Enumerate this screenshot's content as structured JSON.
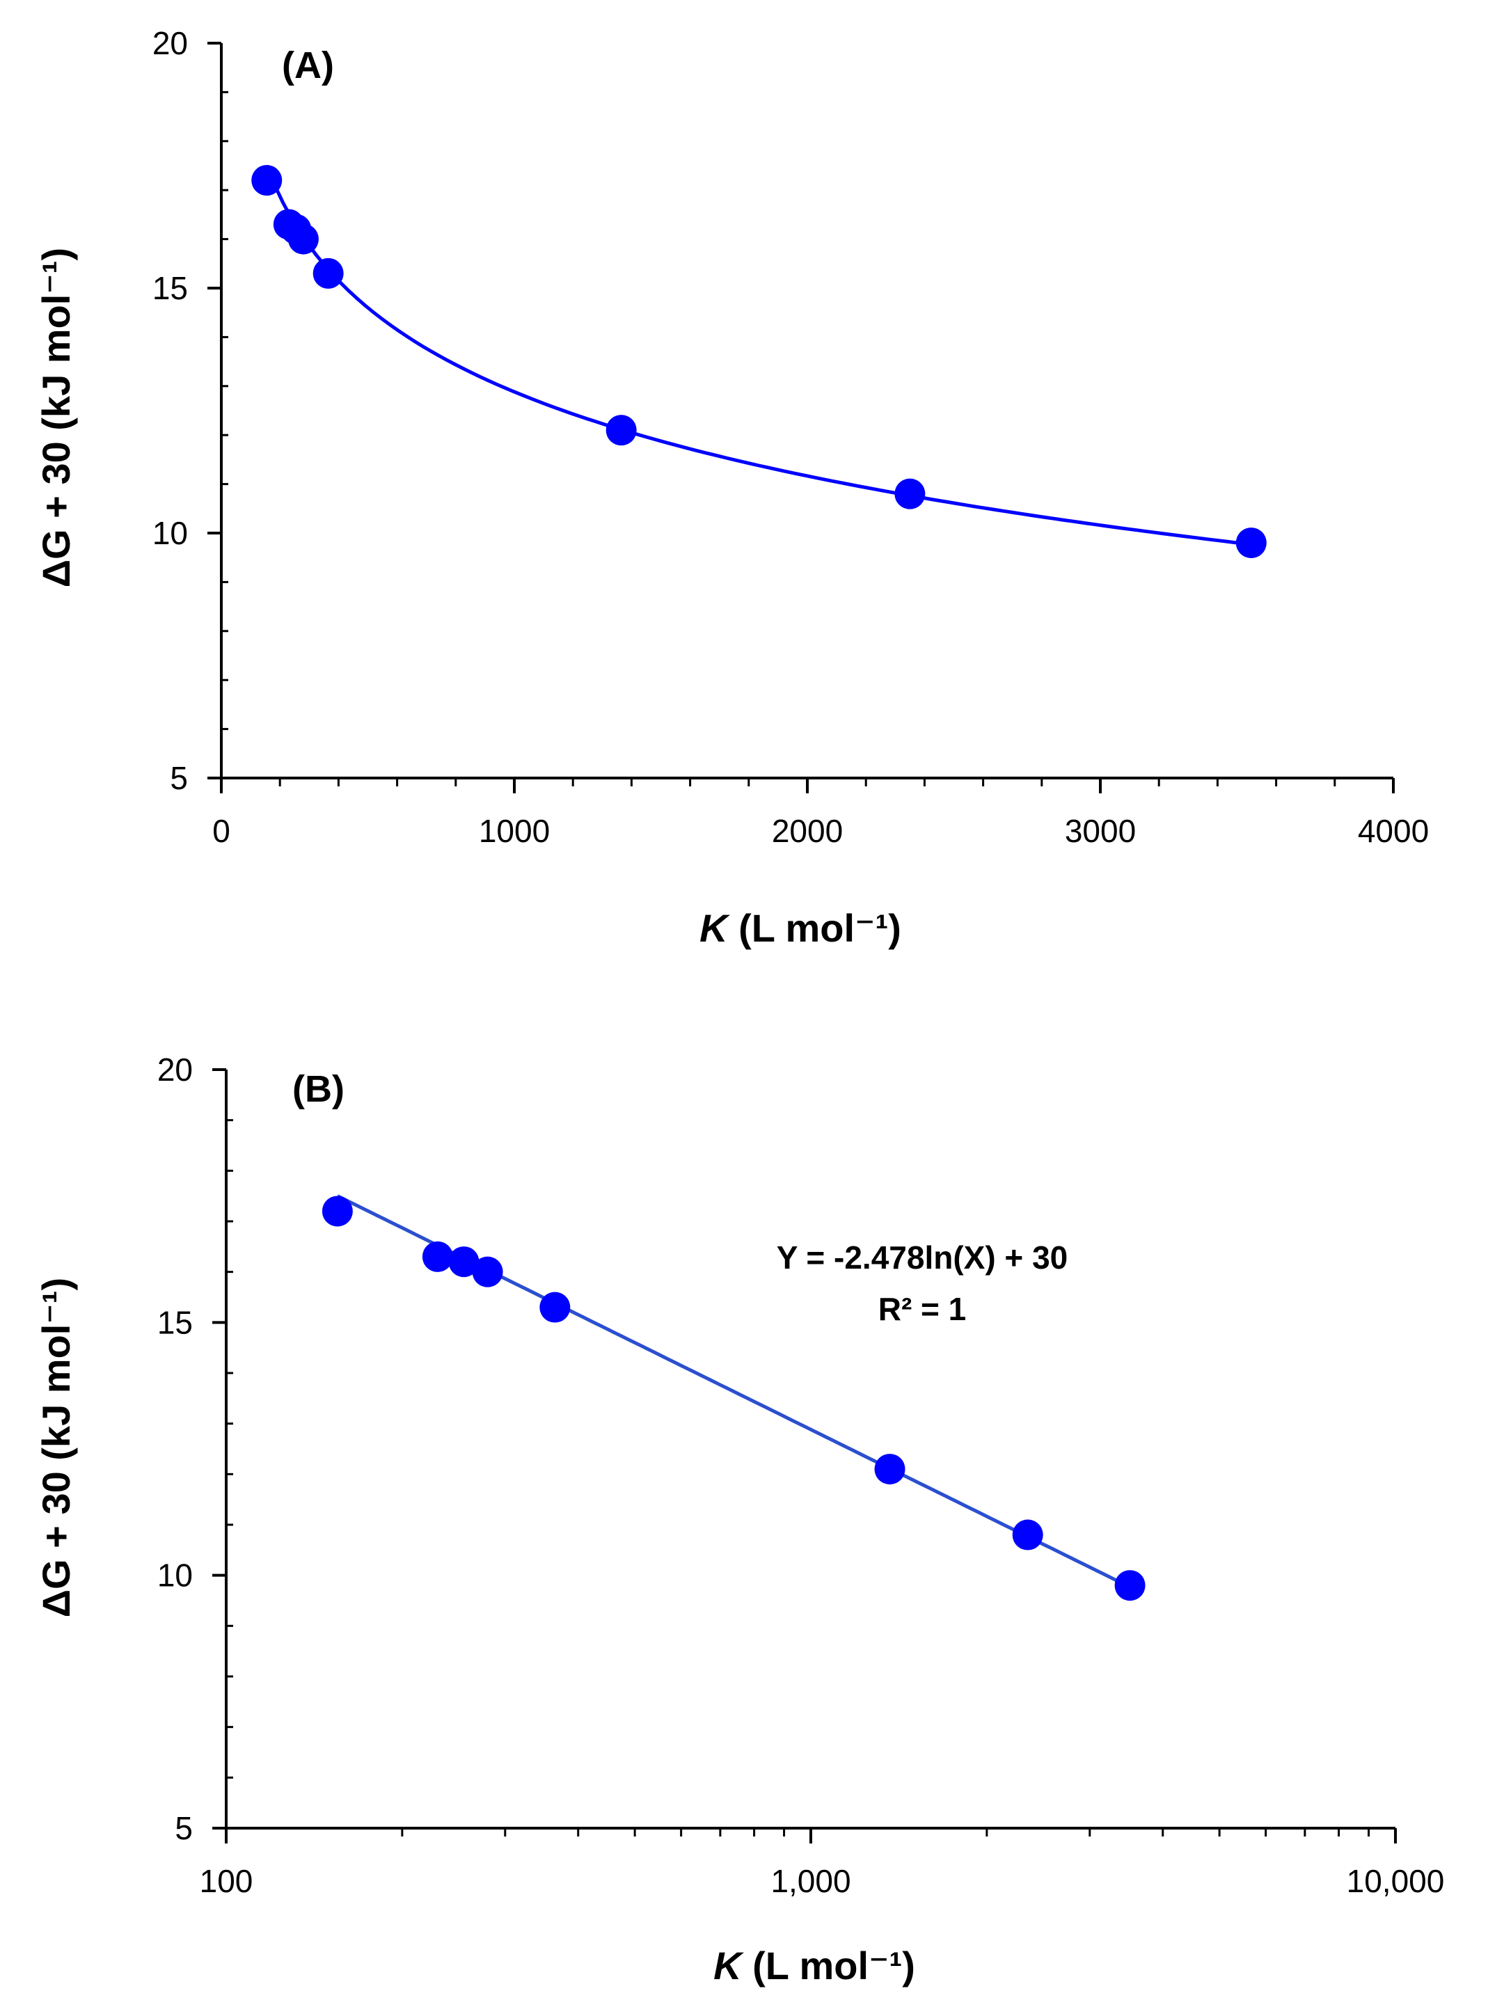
{
  "chart_data": [
    {
      "type": "scatter",
      "panel_label": "(A)",
      "xscale": "linear",
      "xlabel": {
        "italic": "K",
        "rest": " (L mol⁻¹)"
      },
      "ylabel": "ΔG + 30 (kJ mol⁻¹)",
      "xlim": [
        0,
        4000
      ],
      "ylim": [
        5,
        20
      ],
      "xticks": [
        0,
        1000,
        2000,
        3000,
        4000
      ],
      "xtick_labels": [
        "0",
        "1000",
        "2000",
        "3000",
        "4000"
      ],
      "yticks": [
        5,
        10,
        15,
        20
      ],
      "ytick_labels": [
        "5",
        "10",
        "15",
        "20"
      ],
      "y_minor_step": 1,
      "x_minor_step": 200,
      "marker_color": "#0000ff",
      "curve_color": "#0000ff",
      "series": [
        {
          "name": "data",
          "x": [
            155,
            230,
            255,
            280,
            365,
            1365,
            2350,
            3515
          ],
          "y": [
            17.2,
            16.3,
            16.2,
            16.0,
            15.3,
            12.1,
            10.8,
            9.8
          ]
        }
      ],
      "fit": {
        "type": "ln",
        "a": -2.478,
        "b": 30,
        "x_from": 155,
        "x_to": 3515
      }
    },
    {
      "type": "scatter",
      "panel_label": "(B)",
      "xscale": "log",
      "xlabel": {
        "italic": "K",
        "rest": " (L mol⁻¹)"
      },
      "ylabel": "ΔG + 30 (kJ mol⁻¹)",
      "xlim": [
        100,
        10000
      ],
      "ylim": [
        5,
        20
      ],
      "xticks": [
        100,
        1000,
        10000
      ],
      "xtick_labels": [
        "100",
        "1,000",
        "10,000"
      ],
      "yticks": [
        5,
        10,
        15,
        20
      ],
      "ytick_labels": [
        "5",
        "10",
        "15",
        "20"
      ],
      "y_minor_step": 1,
      "marker_color": "#0000ff",
      "curve_color": "#2b4fcf",
      "series": [
        {
          "name": "data",
          "x": [
            155,
            230,
            255,
            280,
            365,
            1365,
            2350,
            3515
          ],
          "y": [
            17.2,
            16.3,
            16.2,
            16.0,
            15.3,
            12.1,
            10.8,
            9.8
          ]
        }
      ],
      "fit": {
        "type": "ln",
        "a": -2.478,
        "b": 30,
        "x_from": 155,
        "x_to": 3515
      },
      "annotation": {
        "equation": "Y = -2.478ln(X) + 30",
        "r2": "R² = 1"
      }
    }
  ]
}
